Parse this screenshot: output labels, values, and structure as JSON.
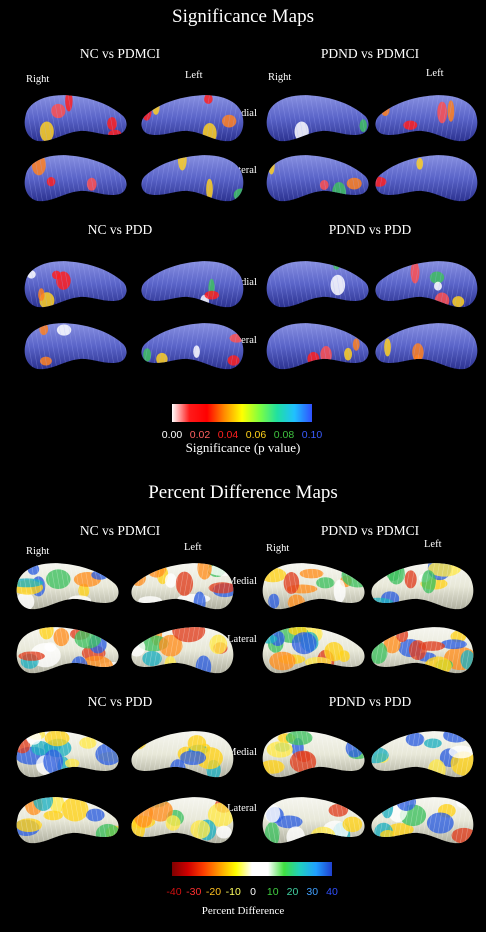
{
  "significance": {
    "title": "Significance Maps",
    "comparisons": [
      "NC vs PDMCI",
      "PDND vs PDMCI",
      "NC vs PDD",
      "PDND vs PDD"
    ],
    "side_labels": {
      "right": "Right",
      "left": "Left"
    },
    "view_labels": {
      "medial": "Medial",
      "lateral": "Lateral"
    },
    "colorbar": {
      "ticks": [
        "0.00",
        "0.02",
        "0.04",
        "0.06",
        "0.08",
        "0.10"
      ],
      "tick_colors": [
        "#ffffff",
        "#ff6060",
        "#ff2020",
        "#ffd21a",
        "#3fc23f",
        "#3a5cff"
      ],
      "label": "Significance (p value)",
      "gradient": [
        "#ffffff",
        "#ff1a1a",
        "#ff0000",
        "#ff8c00",
        "#ffff00",
        "#80ff40",
        "#20e0a0",
        "#20c0ff",
        "#3050ff"
      ]
    }
  },
  "percent": {
    "title": "Percent Difference Maps",
    "comparisons": [
      "NC vs PDMCI",
      "PDND vs PDMCI",
      "NC vs PDD",
      "PDND vs PDD"
    ],
    "side_labels": {
      "right": "Right",
      "left": "Left"
    },
    "view_labels": {
      "medial": "Medial",
      "lateral": "Lateral"
    },
    "colorbar": {
      "ticks": [
        "-40",
        "-30",
        "-20",
        "-10",
        "0",
        "10",
        "20",
        "30",
        "40"
      ],
      "tick_colors": [
        "#d01010",
        "#ff3030",
        "#ffc020",
        "#ffff60",
        "#ffffff",
        "#40d040",
        "#40d0a0",
        "#40a0ff",
        "#3050ff"
      ],
      "label": "Percent Difference",
      "gradient": [
        "#800000",
        "#d00000",
        "#ff4000",
        "#ffa000",
        "#ffff00",
        "#ffffff",
        "#ffffff",
        "#40e040",
        "#20d0c0",
        "#20a0ff",
        "#2040d0"
      ]
    }
  }
}
